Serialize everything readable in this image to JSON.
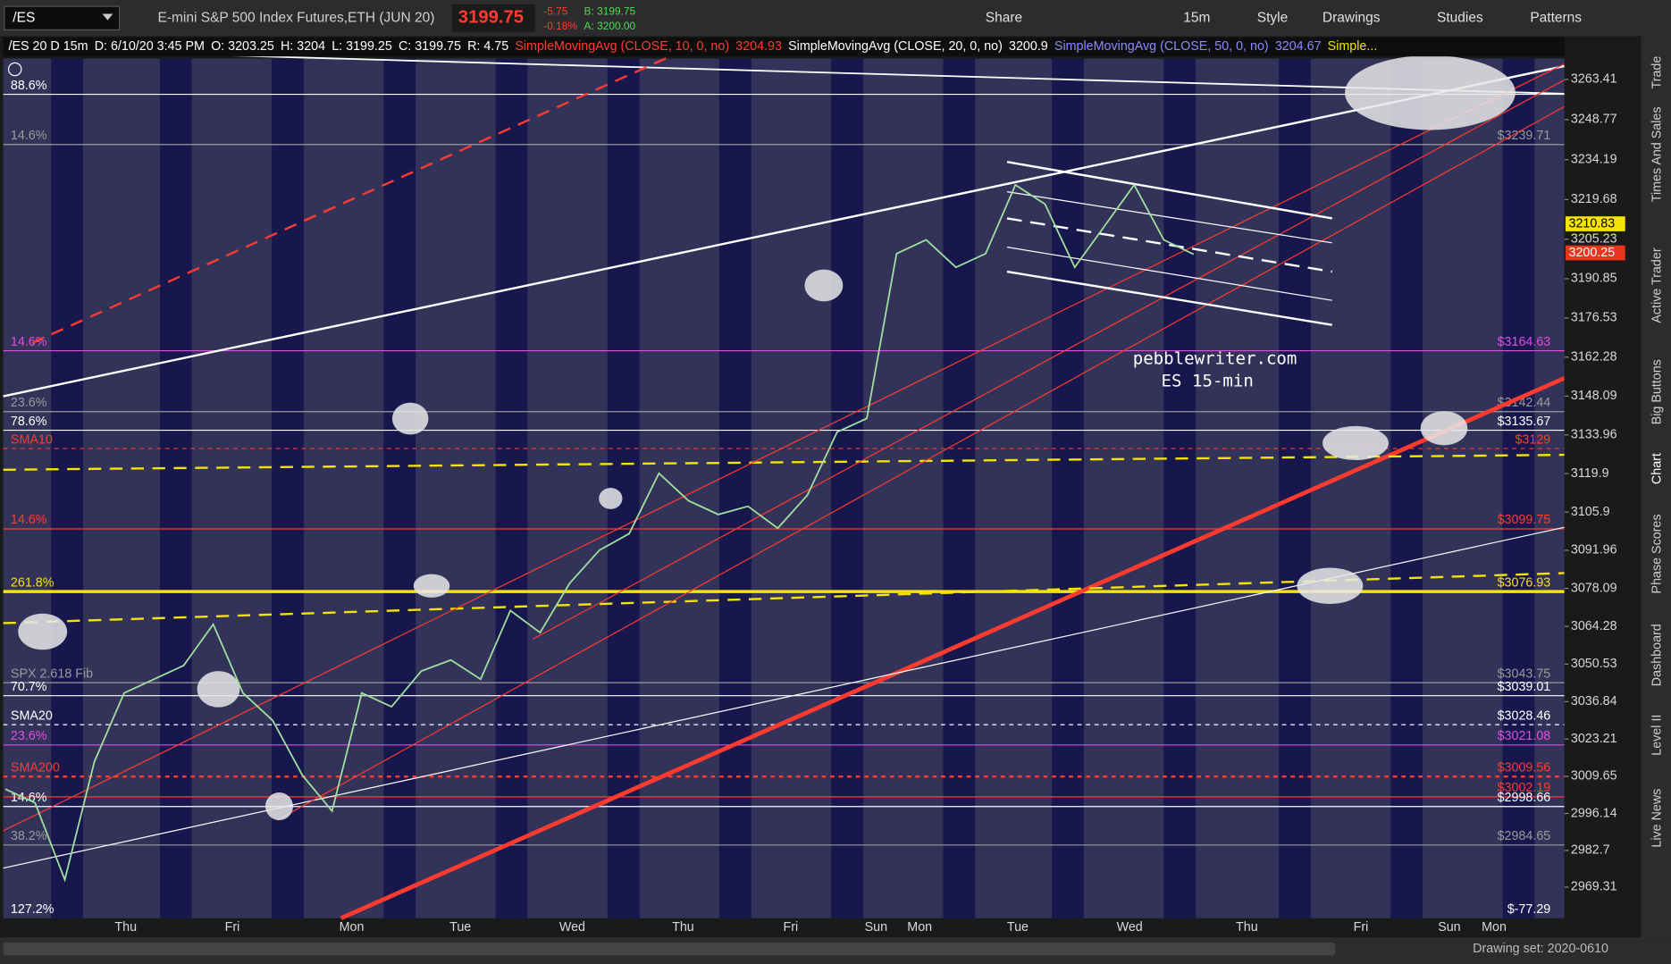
{
  "toolbar": {
    "symbol": "/ES",
    "description": "E-mini S&P 500 Index Futures,ETH (JUN 20)",
    "last": "3199.75",
    "change": "-5.75",
    "change_pct": "-0.18%",
    "bid": "B: 3199.75",
    "ask": "A: 3200.00",
    "buttons": [
      "Share",
      "15m",
      "Style",
      "Drawings",
      "Studies",
      "Patterns"
    ]
  },
  "header": [
    {
      "text": "/ES 20 D 15m",
      "color": "#ffffff"
    },
    {
      "text": "D: 6/10/20 3:45 PM",
      "color": "#ffffff"
    },
    {
      "text": "O: 3203.25",
      "color": "#ffffff"
    },
    {
      "text": "H: 3204",
      "color": "#ffffff"
    },
    {
      "text": "L: 3199.25",
      "color": "#ffffff"
    },
    {
      "text": "C: 3199.75",
      "color": "#ffffff"
    },
    {
      "text": "R: 4.75",
      "color": "#ffffff"
    },
    {
      "text": "SimpleMovingAvg (CLOSE, 10, 0, no)",
      "color": "#ff3b2f"
    },
    {
      "text": "3204.93",
      "color": "#ff3b2f"
    },
    {
      "text": "SimpleMovingAvg (CLOSE, 20, 0, no)",
      "color": "#ffffff"
    },
    {
      "text": "3200.9",
      "color": "#ffffff"
    },
    {
      "text": "SimpleMovingAvg (CLOSE, 50, 0, no)",
      "color": "#8a8aff"
    },
    {
      "text": "3204.67",
      "color": "#8a8aff"
    },
    {
      "text": "Simple...",
      "color": "#f5e400"
    }
  ],
  "side_tabs": [
    "Trade",
    "Times And Sales",
    "Active Trader",
    "Big Buttons",
    "Chart",
    "Phase Scores",
    "Dashboard",
    "Level II",
    "Live News"
  ],
  "footer": {
    "drawing_set": "Drawing set: 2020-0610"
  },
  "chart_data": {
    "type": "line",
    "color": "#9fe09f",
    "x_labels": [
      "Thu",
      "Fri",
      "Mon",
      "Tue",
      "Wed",
      "Thu",
      "Fri",
      "Sun",
      "Mon",
      "Tue",
      "Wed",
      "Thu",
      "Fri",
      "Sun",
      "Mon"
    ],
    "values": [
      3005,
      3000,
      2972,
      3015,
      3040,
      3045,
      3050,
      3065,
      3040,
      3030,
      3010,
      2997,
      3040,
      3035,
      3048,
      3052,
      3045,
      3070,
      3062,
      3080,
      3092,
      3098,
      3120,
      3110,
      3105,
      3108,
      3100,
      3112,
      3135,
      3140,
      3200,
      3205,
      3195,
      3200,
      3225,
      3218,
      3195,
      3210,
      3225,
      3205,
      3199.75
    ],
    "ylim": [
      2958,
      3271
    ],
    "yticks": [
      3263.41,
      3248.77,
      3234.19,
      3219.68,
      3205.23,
      3190.85,
      3176.53,
      3162.28,
      3148.09,
      3133.96,
      3119.9,
      3105.9,
      3091.96,
      3078.09,
      3064.28,
      3050.53,
      3036.84,
      3023.21,
      3009.65,
      2996.14,
      2982.7,
      2969.31
    ],
    "levels": [
      {
        "value": 3258,
        "tag": "88.6%",
        "color": "#ffffff"
      },
      {
        "value": 3239.71,
        "label": "$3239.71",
        "tag": "14.6%",
        "color": "#9a9a9a"
      },
      {
        "value": 3164.63,
        "label": "$3164.63",
        "tag": "14.6%",
        "color": "#e04de0"
      },
      {
        "value": 3142.44,
        "label": "$3142.44",
        "tag": "23.6%",
        "color": "#9a9a9a"
      },
      {
        "value": 3135.67,
        "label": "$3135.67",
        "tag": "78.6%",
        "color": "#ffffff"
      },
      {
        "value": 3129,
        "label": "$3129",
        "tag": "SMA10",
        "color": "#ff3b2f",
        "dash": true
      },
      {
        "value": 3099.75,
        "label": "$3099.75",
        "tag": "14.6%",
        "color": "#ff3b2f"
      },
      {
        "value": 3076.93,
        "label": "$3076.93",
        "tag": "261.8%",
        "color": "#f5e400",
        "width": 3
      },
      {
        "value": 3043.75,
        "label": "$3043.75",
        "tag": "SPX 2.618 Fib",
        "color": "#9a9a9a"
      },
      {
        "value": 3039.01,
        "label": "$3039.01",
        "tag": "70.7%",
        "color": "#ffffff"
      },
      {
        "value": 3028.46,
        "label": "$3028.46",
        "tag": "SMA20",
        "color": "#ffffff",
        "dash": true
      },
      {
        "value": 3021.08,
        "label": "$3021.08",
        "tag": "23.6%",
        "color": "#e04de0"
      },
      {
        "value": 3009.56,
        "label": "$3009.56",
        "tag": "SMA200",
        "color": "#ff3b2f",
        "dash": true,
        "width": 2
      },
      {
        "value": 3002.19,
        "label": "$3002.19",
        "color": "#ff3b2f"
      },
      {
        "value": 2998.66,
        "label": "$2998.66",
        "tag": "14.6%",
        "color": "#ffffff"
      },
      {
        "value": 2984.65,
        "label": "$2984.65",
        "tag": "38.2%",
        "color": "#9a9a9a"
      }
    ],
    "bottom_left_tag": "127.2%",
    "bottom_right_label": "$-77.29",
    "price_boxes": [
      {
        "value": 3210.83,
        "color": "#f5e400",
        "text_color": "#000000"
      },
      {
        "value": 3200.25,
        "color": "#e8361d",
        "text_color": "#ffffff"
      }
    ],
    "annotation": [
      "pebblewriter.com",
      "ES 15-min"
    ]
  }
}
